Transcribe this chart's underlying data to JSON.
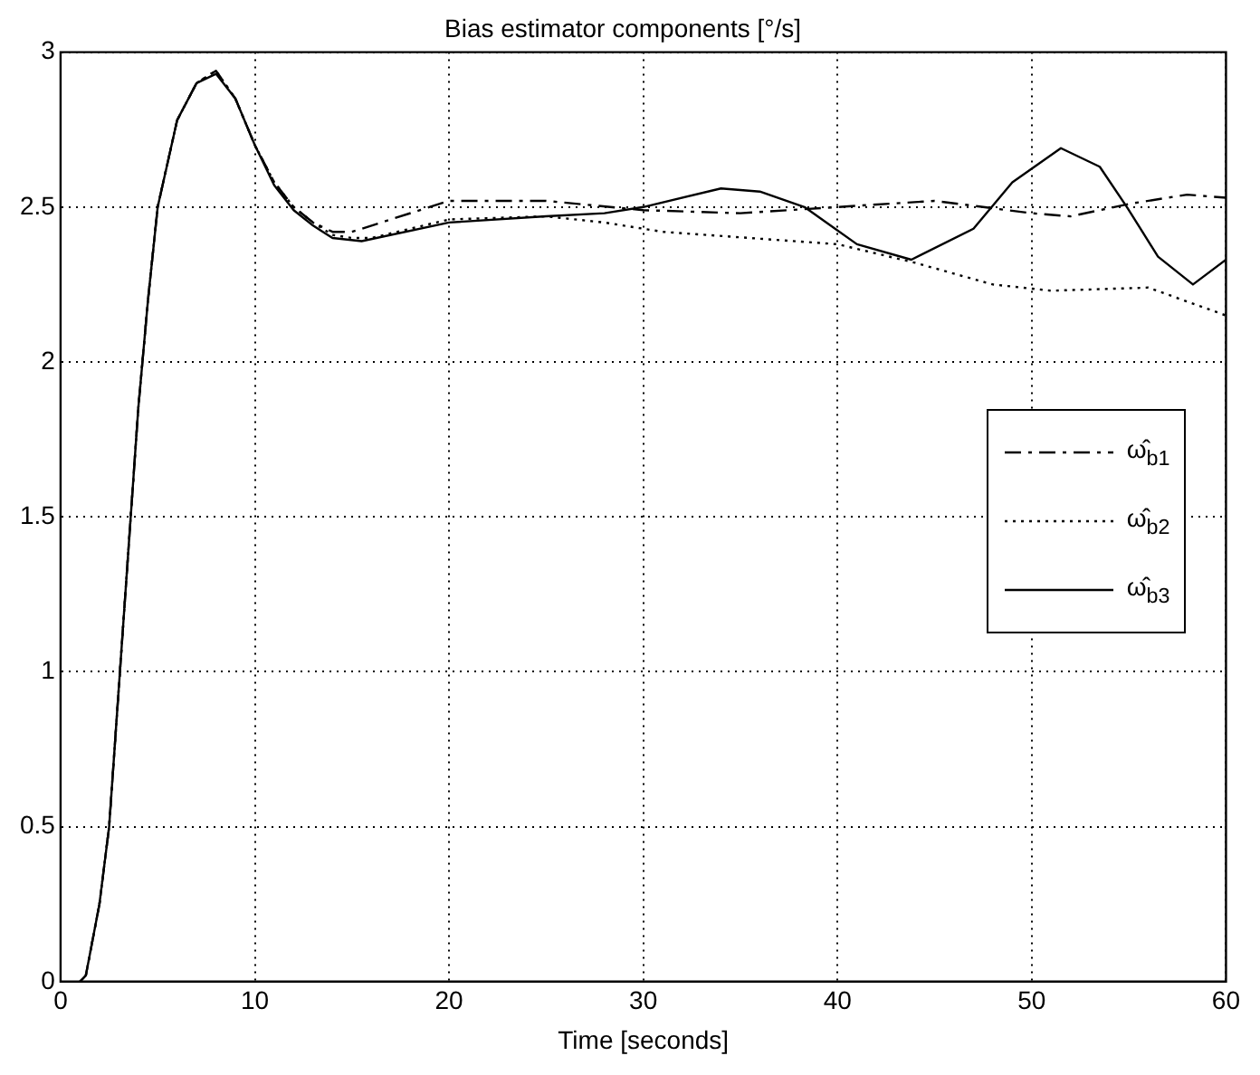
{
  "chart_data": {
    "type": "line",
    "title": "Bias estimator components [°/s]",
    "xlabel": "Time [seconds]",
    "xlim": [
      0,
      60
    ],
    "ylim": [
      0,
      3
    ],
    "xticks": [
      0,
      10,
      20,
      30,
      40,
      50,
      60
    ],
    "yticks": [
      0,
      0.5,
      1,
      1.5,
      2,
      2.5,
      3
    ],
    "grid": true,
    "legend": "right",
    "marker": "none",
    "series": [
      {
        "name": "ω̂$_{b1}$",
        "color": "#000000",
        "line_style": "dashed",
        "x": [
          1,
          1.3,
          2,
          2.5,
          3,
          3.5,
          4,
          4.5,
          5,
          6,
          7,
          8,
          9,
          10,
          11,
          12,
          13,
          14,
          15,
          17,
          20,
          25,
          30,
          35,
          40,
          45,
          50,
          52,
          55,
          58,
          60
        ],
        "values": [
          0,
          0.02,
          0.25,
          0.5,
          0.95,
          1.4,
          1.85,
          2.2,
          2.5,
          2.78,
          2.9,
          2.94,
          2.85,
          2.7,
          2.58,
          2.5,
          2.45,
          2.42,
          2.42,
          2.46,
          2.52,
          2.52,
          2.49,
          2.48,
          2.5,
          2.52,
          2.48,
          2.47,
          2.51,
          2.54,
          2.53
        ]
      },
      {
        "name": "ω̂$_{b2}$",
        "color": "#000000",
        "line_style": "dotted",
        "x": [
          1,
          1.3,
          2,
          2.5,
          3,
          3.5,
          4,
          4.5,
          5,
          6,
          7,
          8,
          9,
          10,
          11,
          12,
          13,
          14,
          15,
          16,
          20,
          25,
          28,
          31,
          40,
          44,
          48,
          51,
          56,
          60
        ],
        "values": [
          0,
          0.02,
          0.25,
          0.5,
          0.95,
          1.4,
          1.85,
          2.2,
          2.5,
          2.78,
          2.9,
          2.94,
          2.85,
          2.7,
          2.58,
          2.5,
          2.45,
          2.41,
          2.4,
          2.4,
          2.46,
          2.47,
          2.45,
          2.42,
          2.38,
          2.32,
          2.25,
          2.23,
          2.24,
          2.15
        ]
      },
      {
        "name": "ω̂$_{b3}$",
        "color": "#000000",
        "line_style": "solid",
        "x": [
          1,
          1.3,
          2,
          2.5,
          3,
          3.5,
          4,
          4.5,
          5,
          6,
          7,
          8,
          9,
          10,
          11,
          12,
          13,
          14,
          15.5,
          20,
          25,
          28,
          30,
          34,
          36,
          38.3,
          41,
          43.8,
          47,
          49,
          51.5,
          53.5,
          54.9,
          56.5,
          58.3,
          60
        ],
        "values": [
          0,
          0.02,
          0.25,
          0.5,
          0.95,
          1.4,
          1.85,
          2.2,
          2.5,
          2.78,
          2.9,
          2.93,
          2.85,
          2.7,
          2.57,
          2.49,
          2.44,
          2.4,
          2.39,
          2.45,
          2.47,
          2.48,
          2.5,
          2.56,
          2.55,
          2.5,
          2.38,
          2.33,
          2.43,
          2.58,
          2.69,
          2.63,
          2.5,
          2.34,
          2.25,
          2.33
        ]
      }
    ]
  }
}
